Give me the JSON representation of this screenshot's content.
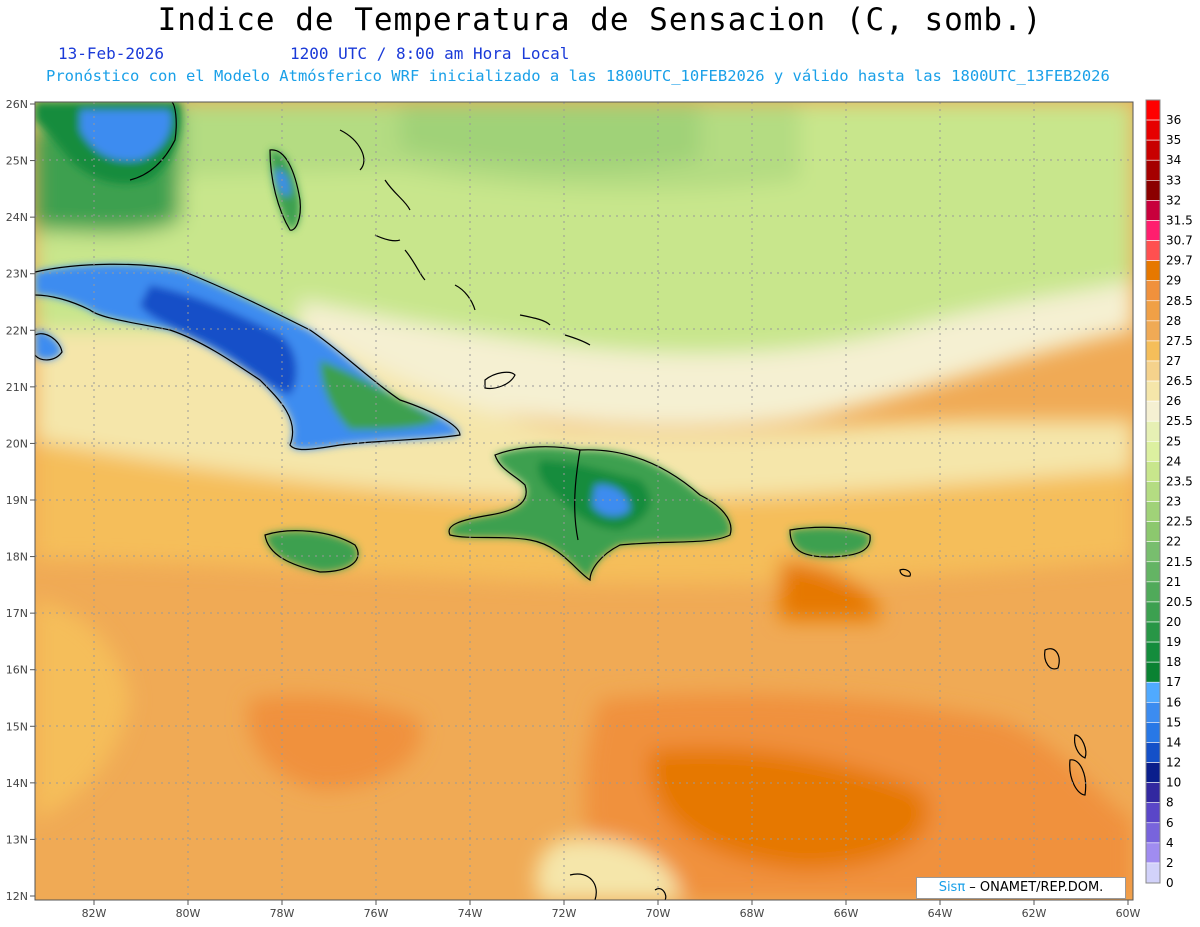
{
  "title": "Indice de Temperatura de Sensacion (C, somb.)",
  "date": "13-Feb-2026",
  "time": "1200 UTC / 8:00 am Hora Local",
  "model_info": "Pronóstico con el Modelo Atmósferico WRF inicializado a las 1800UTC_10FEB2026 y válido hasta las  1800UTC_13FEB2026",
  "credit": {
    "brand": "Sisπ",
    "rest": " – ONAMET/REP.DOM."
  },
  "lat_labels": [
    "26N",
    "25N",
    "24N",
    "23N",
    "22N",
    "21N",
    "20N",
    "19N",
    "18N",
    "17N",
    "16N",
    "15N",
    "14N",
    "13N",
    "12N"
  ],
  "lon_labels": [
    "82W",
    "80W",
    "78W",
    "76W",
    "74W",
    "72W",
    "70W",
    "68W",
    "66W",
    "64W",
    "62W",
    "60W"
  ],
  "colorbar": [
    {
      "label": "36",
      "color": "#ff0000"
    },
    {
      "label": "35",
      "color": "#e60000"
    },
    {
      "label": "34",
      "color": "#c80000"
    },
    {
      "label": "33",
      "color": "#a50000"
    },
    {
      "label": "32",
      "color": "#8b0000"
    },
    {
      "label": "31.5",
      "color": "#c8003c"
    },
    {
      "label": "30.7",
      "color": "#ff1e6e"
    },
    {
      "label": "29.7",
      "color": "#ff5050"
    },
    {
      "label": "29",
      "color": "#e67800"
    },
    {
      "label": "28.5",
      "color": "#f0913c"
    },
    {
      "label": "28",
      "color": "#f0a046"
    },
    {
      "label": "27.5",
      "color": "#f0aa55"
    },
    {
      "label": "27",
      "color": "#f5be5a"
    },
    {
      "label": "26.5",
      "color": "#f5d28c"
    },
    {
      "label": "26",
      "color": "#f5e6aa"
    },
    {
      "label": "25.5",
      "color": "#f5f0d2"
    },
    {
      "label": "25",
      "color": "#e6f0b4"
    },
    {
      "label": "24",
      "color": "#dcf0a0"
    },
    {
      "label": "23.5",
      "color": "#c8e68c"
    },
    {
      "label": "23",
      "color": "#b4dc82"
    },
    {
      "label": "22.5",
      "color": "#a0d278"
    },
    {
      "label": "22",
      "color": "#8cc86e"
    },
    {
      "label": "21.5",
      "color": "#78be6e"
    },
    {
      "label": "21",
      "color": "#64b464"
    },
    {
      "label": "20.5",
      "color": "#50aa5a"
    },
    {
      "label": "20",
      "color": "#3ca050"
    },
    {
      "label": "19",
      "color": "#289646"
    },
    {
      "label": "18",
      "color": "#148c3c"
    },
    {
      "label": "17",
      "color": "#0a8232"
    },
    {
      "label": "16",
      "color": "#50aaff"
    },
    {
      "label": "15",
      "color": "#3c8cf0"
    },
    {
      "label": "14",
      "color": "#2878e6"
    },
    {
      "label": "12",
      "color": "#1450c8"
    },
    {
      "label": "10",
      "color": "#0a1e8c"
    },
    {
      "label": "8",
      "color": "#3228a0"
    },
    {
      "label": "6",
      "color": "#5a46c8"
    },
    {
      "label": "4",
      "color": "#7864dc"
    },
    {
      "label": "2",
      "color": "#a08cf0"
    },
    {
      "label": "0",
      "color": "#d2d2fa"
    }
  ]
}
